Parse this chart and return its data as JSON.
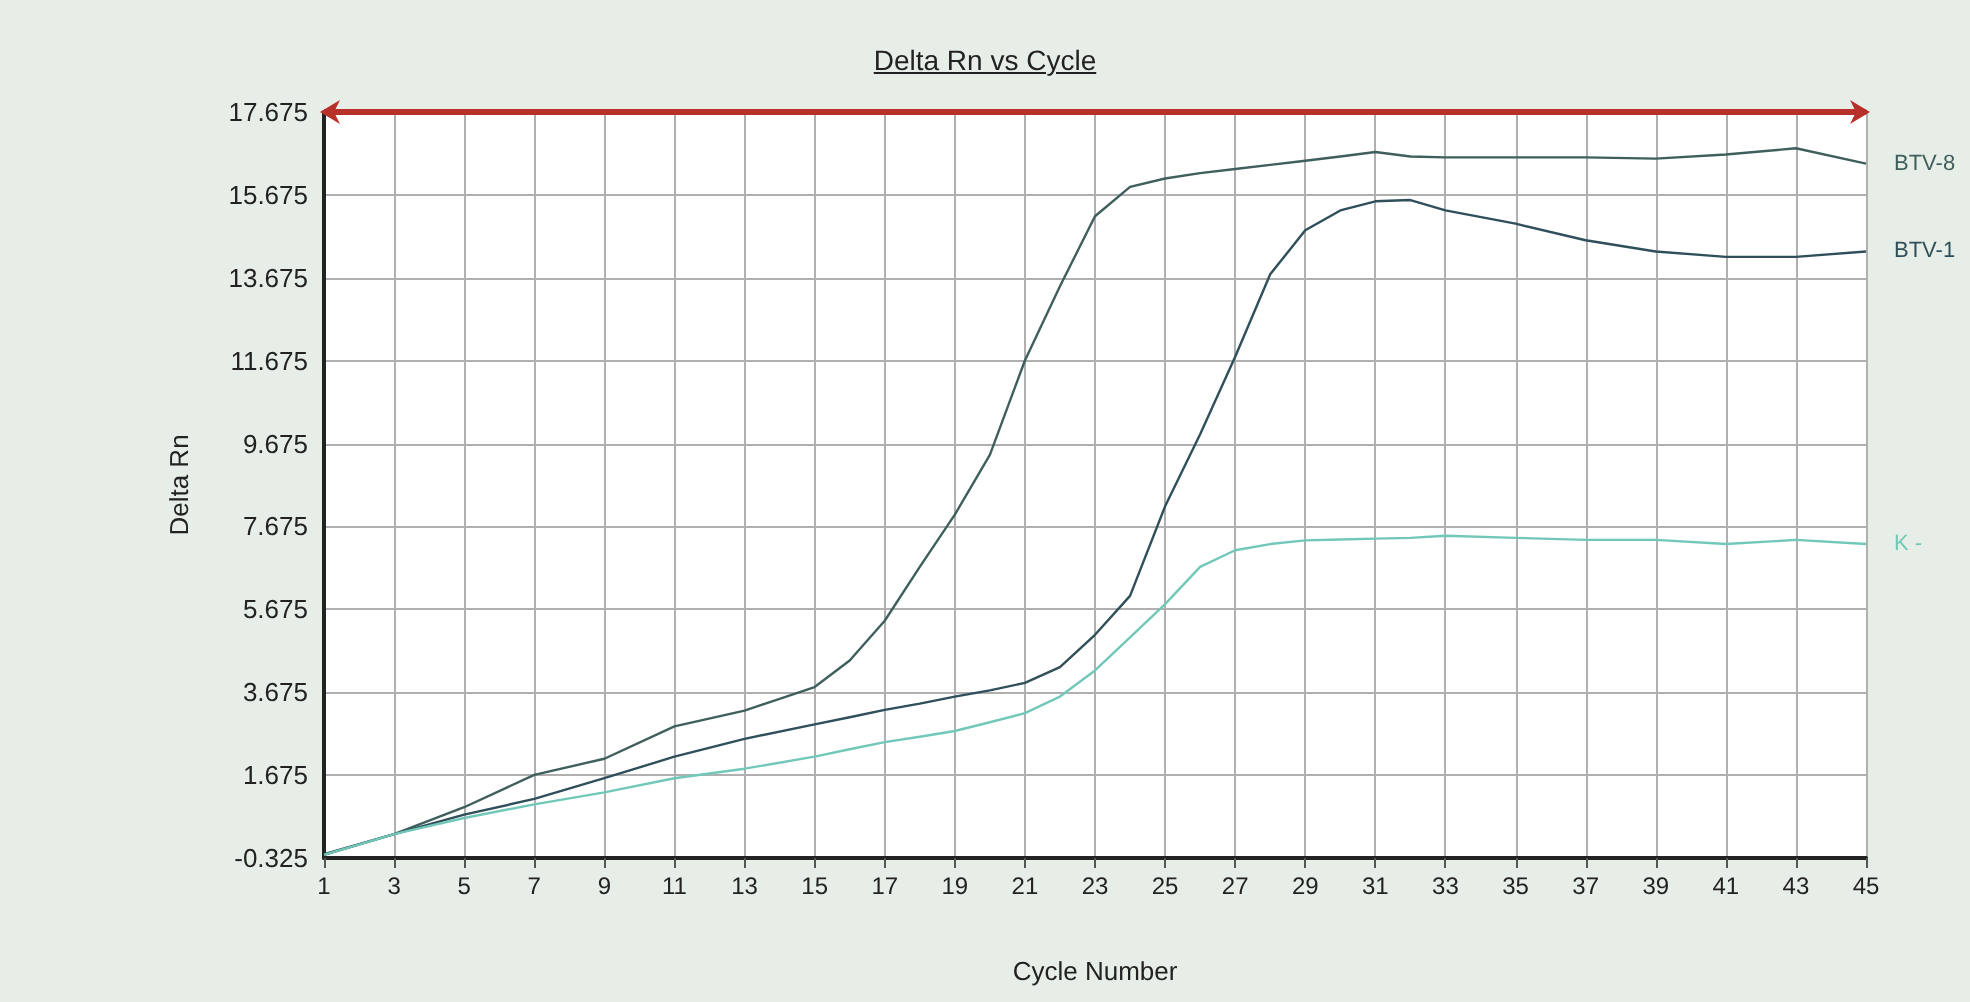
{
  "chart_data": {
    "type": "line",
    "title": "Delta Rn vs Cycle",
    "xlabel": "Cycle Number",
    "ylabel": "Delta Rn",
    "x": [
      1,
      3,
      5,
      7,
      9,
      11,
      13,
      15,
      16,
      17,
      18,
      19,
      20,
      21,
      22,
      23,
      24,
      25,
      26,
      27,
      28,
      29,
      30,
      31,
      32,
      33,
      35,
      37,
      39,
      41,
      43,
      45
    ],
    "series": [
      {
        "name": "BTV-8",
        "color": "#3f5f5c",
        "values": [
          -0.23,
          0.25,
          0.9,
          1.68,
          2.07,
          2.85,
          3.23,
          3.8,
          4.44,
          5.4,
          6.7,
          7.96,
          9.4,
          11.68,
          13.47,
          15.16,
          15.87,
          16.07,
          16.2,
          16.3,
          16.4,
          16.5,
          16.6,
          16.71,
          16.6,
          16.58,
          16.58,
          16.58,
          16.55,
          16.65,
          16.8,
          16.43
        ]
      },
      {
        "name": "BTV-1",
        "color": "#2f4f5a",
        "values": [
          -0.25,
          0.25,
          0.72,
          1.1,
          1.6,
          2.12,
          2.55,
          2.9,
          3.07,
          3.25,
          3.4,
          3.57,
          3.72,
          3.9,
          4.28,
          5.06,
          6.0,
          8.16,
          9.9,
          11.77,
          13.76,
          14.82,
          15.3,
          15.52,
          15.55,
          15.3,
          14.98,
          14.58,
          14.31,
          14.18,
          14.18,
          14.31
        ]
      },
      {
        "name": "K -",
        "color": "#72c8b8",
        "values": [
          -0.25,
          0.25,
          0.64,
          0.97,
          1.26,
          1.6,
          1.83,
          2.12,
          2.3,
          2.47,
          2.6,
          2.74,
          2.95,
          3.17,
          3.57,
          4.2,
          5.0,
          5.8,
          6.7,
          7.1,
          7.25,
          7.34,
          7.36,
          7.38,
          7.4,
          7.45,
          7.4,
          7.35,
          7.35,
          7.25,
          7.35,
          7.25
        ]
      }
    ],
    "xlim": [
      1,
      45
    ],
    "xticks": [
      1,
      3,
      5,
      7,
      9,
      11,
      13,
      15,
      17,
      19,
      21,
      23,
      25,
      27,
      29,
      31,
      33,
      35,
      37,
      39,
      41,
      43,
      45
    ],
    "ylim": [
      -0.325,
      17.675
    ],
    "yticks": [
      -0.325,
      1.675,
      3.675,
      5.675,
      7.675,
      9.675,
      11.675,
      13.675,
      15.675,
      17.675
    ],
    "ref_lines": [
      {
        "axis": "y",
        "value": 17.675,
        "color": "#b8302a"
      }
    ],
    "grid": true,
    "marker": "none",
    "line_style": "solid",
    "legend": false
  }
}
